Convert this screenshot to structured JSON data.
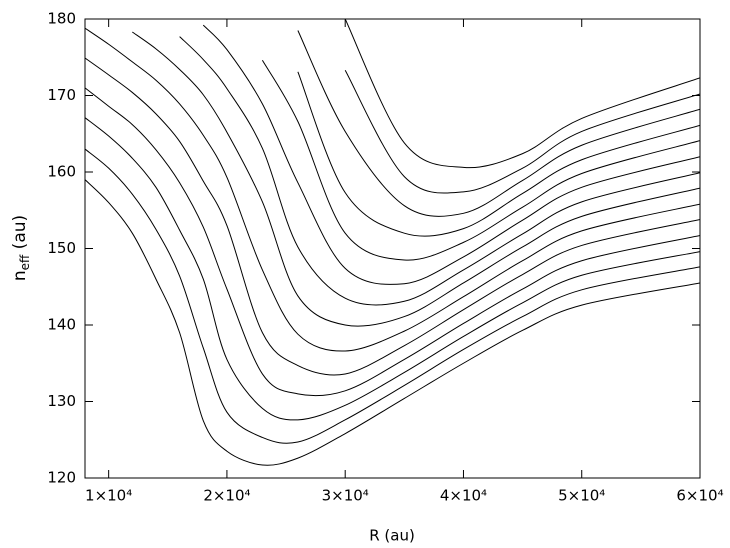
{
  "chart_data": {
    "type": "line",
    "x_label": "R (au)",
    "y_label": {
      "base": "n",
      "subscript": "eff",
      "unit": " (au)"
    },
    "color": "#000000",
    "xlim": [
      8000,
      60000
    ],
    "ylim": [
      120,
      180
    ],
    "xticks": [
      {
        "value": 10000,
        "label": "1×10⁴"
      },
      {
        "value": 20000,
        "label": "2×10⁴"
      },
      {
        "value": 30000,
        "label": "3×10⁴"
      },
      {
        "value": 40000,
        "label": "4×10⁴"
      },
      {
        "value": 50000,
        "label": "5×10⁴"
      },
      {
        "value": 60000,
        "label": "6×10⁴"
      }
    ],
    "yticks": [
      120,
      130,
      140,
      150,
      160,
      170,
      180
    ],
    "x": [
      8000,
      10000,
      12000,
      14000,
      16000,
      18000,
      20000,
      23000,
      26000,
      30000,
      35000,
      40000,
      45000,
      50000,
      60000
    ],
    "series": [
      {
        "values": [
          159.0,
          156.0,
          152.0,
          146.0,
          139.0,
          127.5,
          123.5,
          121.7,
          122.6,
          125.8,
          130.4,
          135.0,
          139.3,
          142.6,
          145.5
        ]
      },
      {
        "values": [
          163.0,
          160.5,
          157.1,
          152.5,
          146.4,
          137.0,
          128.6,
          125.3,
          124.7,
          127.6,
          132.1,
          136.8,
          141.1,
          144.6,
          147.6
        ]
      },
      {
        "values": [
          167.1,
          164.7,
          161.8,
          158.0,
          152.4,
          146.0,
          135.5,
          129.1,
          127.6,
          129.5,
          133.8,
          138.5,
          142.9,
          146.5,
          149.6
        ]
      },
      {
        "values": [
          171.0,
          168.6,
          166.2,
          162.9,
          158.6,
          152.8,
          144.7,
          133.6,
          131.0,
          131.4,
          135.5,
          140.2,
          144.7,
          148.4,
          151.7
        ]
      },
      {
        "values": [
          174.9,
          172.7,
          170.4,
          167.6,
          164.0,
          158.8,
          153.0,
          139.0,
          134.7,
          133.6,
          137.3,
          142.0,
          146.6,
          150.4,
          153.8
        ]
      },
      {
        "values": [
          178.8,
          176.7,
          174.4,
          172.0,
          168.9,
          164.8,
          159.3,
          147.2,
          138.8,
          136.6,
          139.2,
          143.7,
          148.4,
          152.3,
          155.8
        ]
      },
      {
        "values": [
          null,
          null,
          178.3,
          176.1,
          173.4,
          170.1,
          165.2,
          156.1,
          143.8,
          140.0,
          141.1,
          145.5,
          150.2,
          154.2,
          157.9
        ]
      },
      {
        "values": [
          null,
          null,
          null,
          null,
          177.7,
          174.7,
          170.9,
          163.1,
          150.2,
          143.5,
          143.1,
          147.2,
          151.9,
          156.1,
          159.9
        ]
      },
      {
        "values": [
          null,
          null,
          null,
          null,
          null,
          179.2,
          176.0,
          168.9,
          158.6,
          147.4,
          145.4,
          148.9,
          153.7,
          158.0,
          162.0
        ]
      },
      {
        "values": [
          null,
          null,
          null,
          null,
          null,
          null,
          null,
          174.6,
          166.6,
          152.0,
          148.5,
          150.8,
          155.4,
          159.8,
          164.1
        ]
      },
      {
        "values": [
          null,
          null,
          null,
          null,
          null,
          null,
          null,
          null,
          173.1,
          157.3,
          152.0,
          152.6,
          157.2,
          161.6,
          166.1
        ]
      },
      {
        "values": [
          null,
          null,
          null,
          null,
          null,
          null,
          null,
          null,
          178.5,
          165.3,
          155.6,
          154.6,
          158.9,
          163.5,
          168.2
        ]
      },
      {
        "values": [
          null,
          null,
          null,
          null,
          null,
          null,
          null,
          null,
          null,
          173.3,
          159.4,
          157.4,
          160.5,
          165.3,
          170.2
        ]
      },
      {
        "values": [
          null,
          null,
          null,
          null,
          null,
          null,
          null,
          null,
          null,
          180.0,
          163.8,
          160.6,
          162.4,
          167.0,
          172.3
        ]
      }
    ]
  }
}
